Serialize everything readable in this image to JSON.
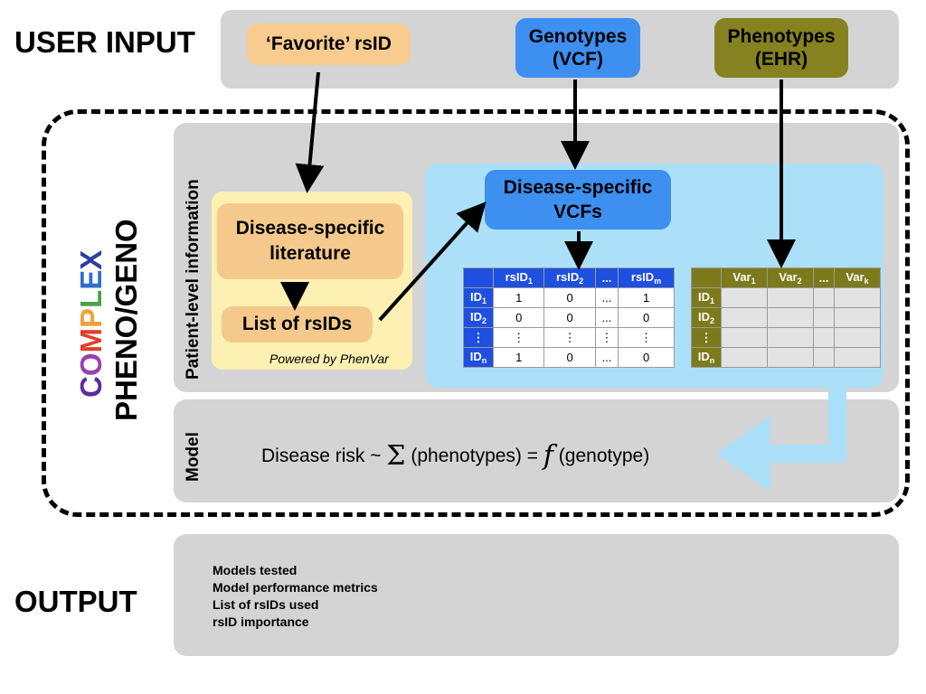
{
  "headings": {
    "user_input": "USER INPUT",
    "output": "OUTPUT"
  },
  "inputs": {
    "favorite_rsid": "‘Favorite’ rsID",
    "genotypes_line1": "Genotypes",
    "genotypes_line2": "(VCF)",
    "phenotypes_line1": "Phenotypes",
    "phenotypes_line2": "(EHR)"
  },
  "complex": {
    "letters": [
      {
        "ch": "C",
        "color": "#5b2aa0"
      },
      {
        "ch": "O",
        "color": "#9b3fb0"
      },
      {
        "ch": "M",
        "color": "#e0402a"
      },
      {
        "ch": "P",
        "color": "#f2a03a"
      },
      {
        "ch": "L",
        "color": "#4aa24a"
      },
      {
        "ch": "E",
        "color": "#2f6fd0"
      },
      {
        "ch": "X",
        "color": "#2a3f9e"
      }
    ],
    "subtitle": "PHENO/GENO"
  },
  "sections": {
    "patient_level": "Patient-level information",
    "model": "Model"
  },
  "literature": {
    "box_line1": "Disease-specific",
    "box_line2": "literature",
    "list": "List of rsIDs",
    "powered": "Powered by PhenVar"
  },
  "vcf": {
    "line1": "Disease-specific",
    "line2": "VCFs"
  },
  "genotype_table": {
    "columns": [
      {
        "base": "rsID",
        "sub": "1"
      },
      {
        "base": "rsID",
        "sub": "2"
      },
      {
        "base": "...",
        "sub": ""
      },
      {
        "base": "rsID",
        "sub": "m"
      }
    ],
    "rows": [
      {
        "base": "ID",
        "sub": "1",
        "cells": [
          "1",
          "0",
          "...",
          "1"
        ]
      },
      {
        "base": "ID",
        "sub": "2",
        "cells": [
          "0",
          "0",
          "...",
          "0"
        ]
      },
      {
        "base": "⋮",
        "sub": "",
        "cells": [
          "⋮",
          "⋮",
          "⋮",
          "⋮"
        ]
      },
      {
        "base": "ID",
        "sub": "n",
        "cells": [
          "1",
          "0",
          "...",
          "0"
        ]
      }
    ]
  },
  "phenotype_table": {
    "columns": [
      {
        "base": "Var",
        "sub": "1"
      },
      {
        "base": "Var",
        "sub": "2"
      },
      {
        "base": "...",
        "sub": ""
      },
      {
        "base": "Var",
        "sub": "k"
      }
    ],
    "rows": [
      {
        "base": "ID",
        "sub": "1"
      },
      {
        "base": "ID",
        "sub": "2"
      },
      {
        "base": "⋮",
        "sub": ""
      },
      {
        "base": "ID",
        "sub": "n"
      }
    ]
  },
  "model_formula": {
    "prefix": "Disease risk ~ ",
    "sigma": "Σ",
    "middle": " (phenotypes) = ",
    "func": "f",
    "suffix": " (genotype)"
  },
  "output_items": [
    "Models tested",
    "Model performance metrics",
    "List of rsIDs used",
    "rsID importance"
  ],
  "colors": {
    "favorite": "#f8cb8f",
    "genotypes": "#3d8ff0",
    "phenotypes": "#85821f",
    "literature_bg": "#fdf0b3",
    "literature_node": "#f5c98c",
    "vcf_bg": "#ace0f8",
    "vcf_node": "#3d8ff0",
    "panel": "#d4d4d4"
  }
}
